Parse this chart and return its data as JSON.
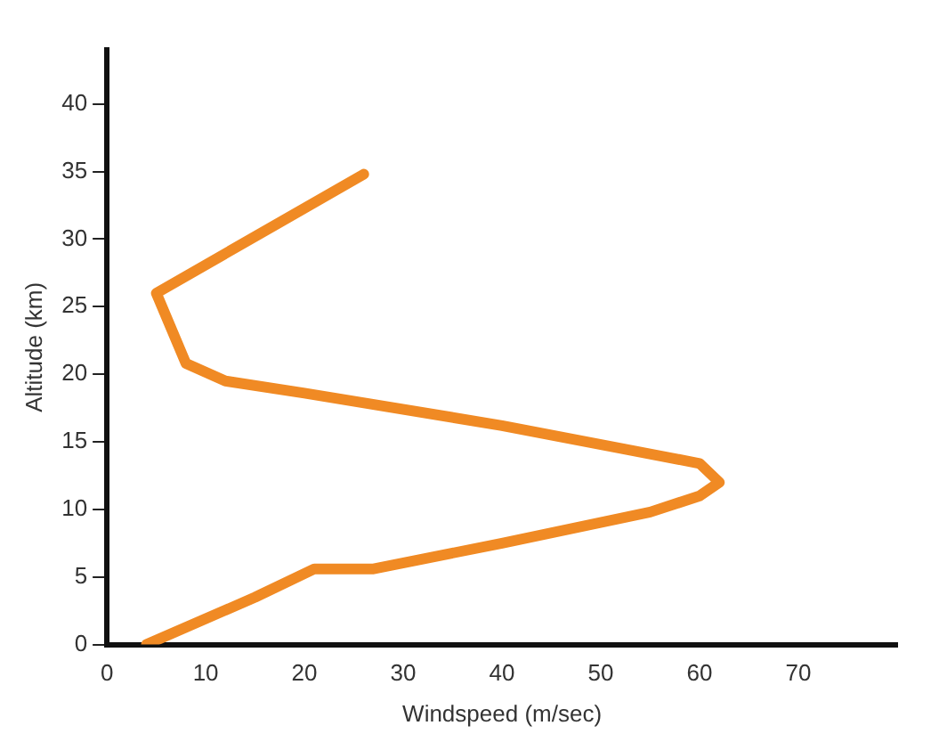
{
  "chart_data": {
    "type": "line",
    "xlabel": "Windspeed (m/sec)",
    "ylabel": "Altitude (km)",
    "series": [
      {
        "color": "#f08a24",
        "x": [
          4,
          15,
          21,
          27,
          40,
          55,
          60,
          62,
          60,
          40,
          20,
          12,
          8,
          5,
          26
        ],
        "values": [
          0,
          3.5,
          5.6,
          5.6,
          7.5,
          9.8,
          11,
          12,
          13.4,
          16.2,
          18.6,
          19.5,
          20.8,
          26,
          34.8
        ]
      }
    ],
    "xlim": [
      0,
      80
    ],
    "xticks": [
      0,
      10,
      20,
      30,
      40,
      50,
      60,
      70
    ],
    "ylim": [
      0,
      44
    ],
    "yticks": [
      0,
      5,
      10,
      15,
      20,
      25,
      30,
      35,
      40
    ],
    "grid": false,
    "legend": false,
    "marker": "none",
    "line_style": "solid"
  }
}
